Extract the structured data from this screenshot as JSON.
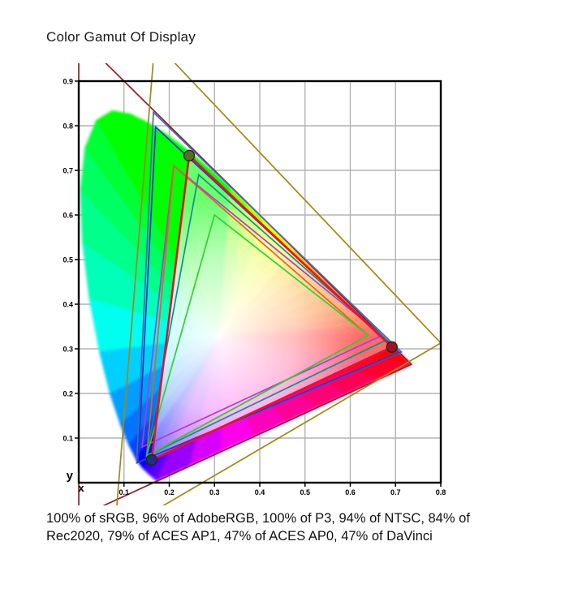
{
  "title": "Color Gamut Of Display",
  "caption_lines": [
    "100% of sRGB, 96% of AdobeRGB, 100% of P3, 94% of NTSC, 84% of",
    "Rec2020, 79% of ACES AP1, 47% of ACES AP0, 47% of DaVinci"
  ],
  "chart_data": {
    "type": "scatter",
    "subtype": "cie-1931-chromaticity-gamut-diagram",
    "xlabel": "x",
    "ylabel": "y",
    "xlim": [
      0.0,
      0.8
    ],
    "ylim": [
      0.0,
      0.9
    ],
    "x_ticks": [
      0.1,
      0.2,
      0.3,
      0.4,
      0.5,
      0.6,
      0.7,
      0.8
    ],
    "y_ticks": [
      0.1,
      0.2,
      0.3,
      0.4,
      0.5,
      0.6,
      0.7,
      0.8,
      0.9
    ],
    "grid": true,
    "grid_color": "#b3b3b3",
    "border_color": "#000000",
    "white_point": [
      0.3127,
      0.329
    ],
    "display_gamut": {
      "name": "Display",
      "color": "#e8102e",
      "line_width": 2.6,
      "R": [
        0.692,
        0.304
      ],
      "G": [
        0.244,
        0.733
      ],
      "B": [
        0.161,
        0.051
      ],
      "marker_fill": {
        "R": "#9c1420",
        "G": "#5a6b22",
        "B": "#20307a"
      },
      "marker_stroke": "#222222"
    },
    "reference_gamuts": [
      {
        "name": "ACES AP0",
        "color": "#8c2030",
        "R": [
          0.7347,
          0.2653
        ],
        "G": [
          0.0,
          1.0
        ],
        "B": [
          0.0001,
          -0.077
        ]
      },
      {
        "name": "DaVinci",
        "color": "#a08818",
        "R": [
          0.8,
          0.313
        ],
        "G": [
          0.1682,
          0.9877
        ],
        "B": [
          0.079,
          -0.1155
        ]
      },
      {
        "name": "ACES AP1",
        "color": "#4a68b8",
        "R": [
          0.713,
          0.293
        ],
        "G": [
          0.165,
          0.83
        ],
        "B": [
          0.128,
          0.044
        ]
      },
      {
        "name": "Rec2020",
        "color": "#2838cf",
        "R": [
          0.708,
          0.292
        ],
        "G": [
          0.17,
          0.797
        ],
        "B": [
          0.131,
          0.046
        ]
      },
      {
        "name": "NTSC",
        "color": "#a93fd1",
        "R": [
          0.67,
          0.33
        ],
        "G": [
          0.21,
          0.71
        ],
        "B": [
          0.14,
          0.08
        ]
      },
      {
        "name": "AdobeRGB",
        "color": "#e0622a",
        "R": [
          0.64,
          0.33
        ],
        "G": [
          0.21,
          0.71
        ],
        "B": [
          0.15,
          0.06
        ]
      },
      {
        "name": "P3",
        "color": "#0d8f8f",
        "R": [
          0.68,
          0.32
        ],
        "G": [
          0.265,
          0.69
        ],
        "B": [
          0.15,
          0.06
        ]
      },
      {
        "name": "sRGB",
        "color": "#2fd12f",
        "R": [
          0.64,
          0.33
        ],
        "G": [
          0.3,
          0.6
        ],
        "B": [
          0.15,
          0.06
        ]
      }
    ],
    "coverage": [
      {
        "gamut": "sRGB",
        "percent": 100
      },
      {
        "gamut": "AdobeRGB",
        "percent": 96
      },
      {
        "gamut": "P3",
        "percent": 100
      },
      {
        "gamut": "NTSC",
        "percent": 94
      },
      {
        "gamut": "Rec2020",
        "percent": 84
      },
      {
        "gamut": "ACES AP1",
        "percent": 79
      },
      {
        "gamut": "ACES AP0",
        "percent": 47
      },
      {
        "gamut": "DaVinci",
        "percent": 47
      }
    ],
    "horseshoe_outline_xy": [
      [
        0.1741,
        0.005
      ],
      [
        0.174,
        0.0049
      ],
      [
        0.173,
        0.0048
      ],
      [
        0.1714,
        0.0051
      ],
      [
        0.1689,
        0.0069
      ],
      [
        0.1644,
        0.0109
      ],
      [
        0.1566,
        0.0177
      ],
      [
        0.144,
        0.0297
      ],
      [
        0.1355,
        0.0399
      ],
      [
        0.1241,
        0.0578
      ],
      [
        0.1096,
        0.0868
      ],
      [
        0.0913,
        0.1327
      ],
      [
        0.0687,
        0.2007
      ],
      [
        0.0454,
        0.295
      ],
      [
        0.0235,
        0.4127
      ],
      [
        0.0082,
        0.5384
      ],
      [
        0.0039,
        0.6548
      ],
      [
        0.0139,
        0.7502
      ],
      [
        0.0389,
        0.812
      ],
      [
        0.0743,
        0.8338
      ],
      [
        0.1142,
        0.8262
      ],
      [
        0.1547,
        0.8059
      ],
      [
        0.1929,
        0.7816
      ],
      [
        0.2296,
        0.7543
      ],
      [
        0.2658,
        0.7243
      ],
      [
        0.3016,
        0.6923
      ],
      [
        0.3373,
        0.6589
      ],
      [
        0.3731,
        0.6245
      ],
      [
        0.4087,
        0.5896
      ],
      [
        0.4441,
        0.5547
      ],
      [
        0.4788,
        0.5202
      ],
      [
        0.5125,
        0.4866
      ],
      [
        0.5448,
        0.4544
      ],
      [
        0.5752,
        0.4242
      ],
      [
        0.6029,
        0.3965
      ],
      [
        0.627,
        0.3725
      ],
      [
        0.6482,
        0.3514
      ],
      [
        0.6658,
        0.334
      ],
      [
        0.6801,
        0.3197
      ],
      [
        0.6915,
        0.3083
      ],
      [
        0.7006,
        0.2993
      ],
      [
        0.7079,
        0.292
      ],
      [
        0.719,
        0.2809
      ],
      [
        0.726,
        0.274
      ],
      [
        0.732,
        0.268
      ],
      [
        0.7347,
        0.2653
      ],
      [
        0.6646,
        0.2328
      ],
      [
        0.5946,
        0.2002
      ],
      [
        0.5245,
        0.1677
      ],
      [
        0.4544,
        0.1352
      ],
      [
        0.3843,
        0.1026
      ],
      [
        0.3143,
        0.0701
      ],
      [
        0.2442,
        0.0375
      ]
    ]
  }
}
